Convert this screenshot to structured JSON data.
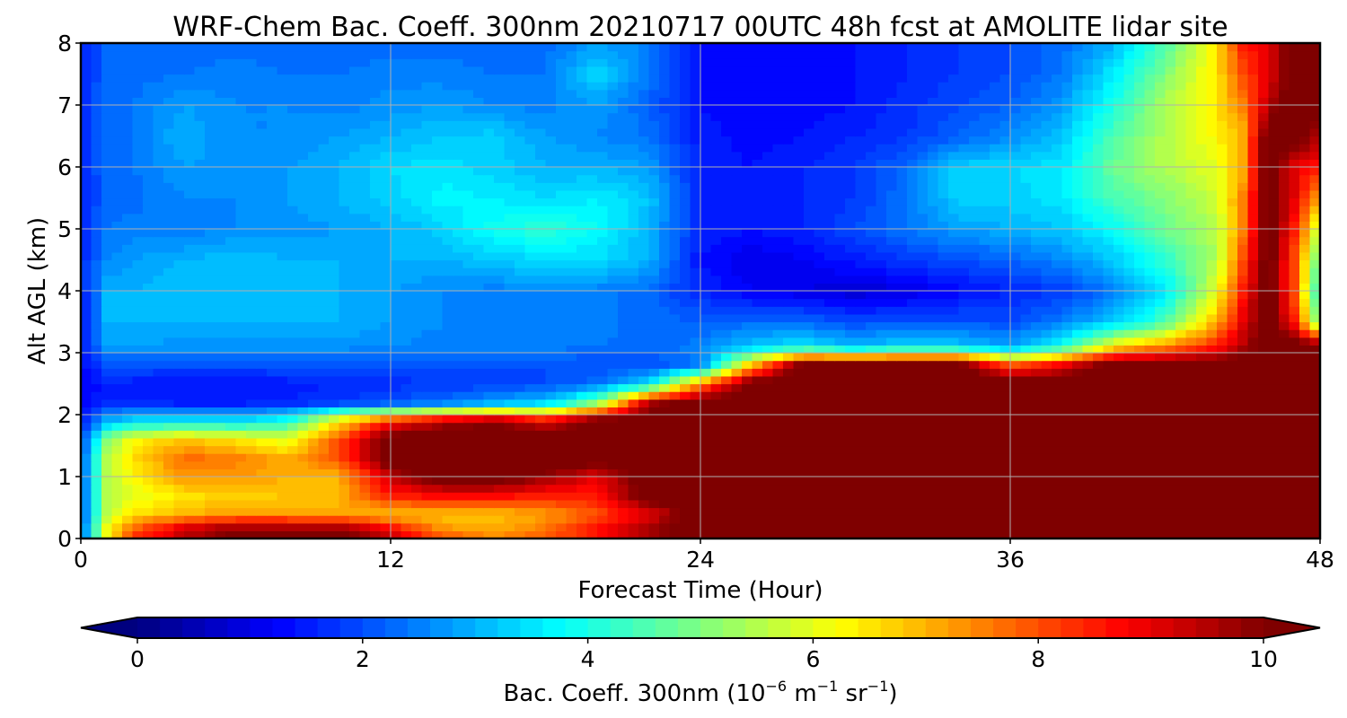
{
  "chart_data": {
    "type": "heatmap",
    "subtype": "filled-contour",
    "title": "WRF-Chem Bac. Coeff. 300nm  20210717 00UTC 48h fcst at AMOLITE lidar site",
    "xlabel": "Forecast Time (Hour)",
    "ylabel": "Alt AGL (km)",
    "xlim": [
      0,
      48
    ],
    "ylim": [
      0,
      8
    ],
    "xticks": [
      "0",
      "12",
      "24",
      "36",
      "48"
    ],
    "yticks": [
      "0",
      "1",
      "2",
      "3",
      "4",
      "5",
      "6",
      "7",
      "8"
    ],
    "grid": true,
    "colormap": "jet",
    "colorbar": {
      "label": "Bac. Coeff. 300nm  (10",
      "label_exp1": "−6",
      "label_mid": " m",
      "label_exp2": "−1",
      "label_mid2": " sr",
      "label_exp3": "−1",
      "label_end": ")",
      "range": [
        0,
        10
      ],
      "ticks": [
        "0",
        "2",
        "4",
        "6",
        "8",
        "10"
      ],
      "extend": "both",
      "under_color": "#00007f",
      "over_color": "#7f0000"
    },
    "x": [
      0,
      1,
      2,
      4,
      6,
      8,
      10,
      12,
      14,
      16,
      18,
      20,
      22,
      24,
      26,
      28,
      30,
      32,
      34,
      36,
      38,
      40,
      42,
      44,
      45,
      46,
      47,
      48
    ],
    "y": [
      0,
      0.2,
      0.4,
      0.7,
      1.0,
      1.3,
      1.6,
      1.9,
      2.2,
      2.5,
      2.8,
      3.1,
      3.5,
      4.0,
      4.5,
      5.0,
      5.5,
      6.0,
      6.5,
      7.0,
      7.5,
      8.0
    ],
    "z": [
      [
        2.0,
        6.0,
        8.5,
        9.5,
        10.5,
        10.5,
        10.5,
        9.5,
        8.0,
        7.5,
        8.0,
        8.5,
        9.5,
        10.5,
        10.5,
        10.5,
        10.5,
        10.5,
        10.5,
        10.5,
        10.5,
        10.5,
        10.5,
        10.5,
        10.5,
        10.5,
        10.5,
        10.5
      ],
      [
        2.0,
        6.0,
        7.5,
        9.0,
        9.5,
        9.5,
        9.5,
        8.5,
        7.2,
        7.0,
        7.5,
        8.5,
        9.5,
        10.5,
        10.5,
        10.5,
        10.5,
        10.5,
        10.5,
        10.5,
        10.5,
        10.5,
        10.5,
        10.5,
        10.5,
        10.5,
        10.5,
        10.5
      ],
      [
        2.0,
        5.5,
        6.5,
        7.0,
        7.2,
        7.2,
        7.0,
        6.8,
        6.8,
        6.8,
        7.2,
        8.0,
        9.0,
        10.5,
        10.5,
        10.5,
        10.5,
        10.5,
        10.5,
        10.5,
        10.5,
        10.5,
        10.5,
        10.5,
        10.5,
        10.5,
        10.5,
        10.5
      ],
      [
        2.0,
        5.5,
        6.0,
        6.5,
        6.7,
        6.8,
        7.0,
        8.5,
        8.8,
        8.8,
        8.5,
        8.5,
        10.5,
        10.5,
        10.5,
        10.5,
        10.5,
        10.5,
        10.5,
        10.5,
        10.5,
        10.5,
        10.5,
        10.5,
        10.5,
        10.5,
        10.5,
        10.5
      ],
      [
        2.0,
        5.5,
        6.3,
        7.3,
        7.3,
        7.0,
        7.0,
        9.3,
        10.5,
        10.5,
        9.8,
        9.0,
        10.5,
        10.5,
        10.5,
        10.5,
        10.5,
        10.5,
        10.5,
        10.5,
        10.5,
        10.5,
        10.5,
        10.5,
        10.5,
        10.5,
        10.5,
        10.5
      ],
      [
        2.0,
        5.5,
        6.5,
        7.7,
        7.5,
        7.0,
        8.0,
        10.5,
        10.5,
        10.5,
        10.5,
        10.5,
        10.5,
        10.5,
        10.5,
        10.5,
        10.5,
        10.5,
        10.5,
        10.5,
        10.5,
        10.5,
        10.5,
        10.5,
        10.5,
        10.5,
        10.5,
        10.5
      ],
      [
        1.8,
        5.0,
        6.3,
        6.8,
        6.5,
        6.0,
        8.0,
        10.5,
        10.5,
        10.5,
        10.5,
        10.5,
        10.5,
        10.5,
        10.5,
        10.5,
        10.5,
        10.5,
        10.5,
        10.5,
        10.5,
        10.5,
        10.5,
        10.5,
        10.5,
        10.5,
        10.5,
        10.5
      ],
      [
        1.5,
        3.0,
        3.5,
        3.5,
        3.5,
        4.0,
        6.5,
        8.5,
        9.5,
        10.0,
        9.0,
        10.5,
        10.5,
        10.5,
        10.5,
        10.5,
        10.5,
        10.5,
        10.5,
        10.5,
        10.5,
        10.5,
        10.5,
        10.5,
        10.5,
        10.5,
        10.5,
        10.5
      ],
      [
        1.2,
        1.6,
        1.6,
        1.5,
        1.5,
        1.6,
        1.8,
        2.0,
        2.3,
        2.8,
        3.2,
        5.0,
        9.5,
        10.5,
        10.5,
        10.5,
        10.5,
        10.5,
        10.5,
        10.5,
        10.5,
        10.5,
        10.5,
        10.5,
        10.5,
        10.5,
        10.5,
        10.5
      ],
      [
        1.2,
        1.5,
        1.5,
        1.4,
        1.4,
        1.5,
        1.6,
        1.7,
        1.8,
        1.9,
        2.0,
        2.3,
        3.5,
        7.5,
        10.5,
        10.5,
        10.5,
        10.5,
        10.5,
        10.5,
        10.5,
        10.5,
        10.5,
        10.5,
        10.5,
        10.5,
        10.5,
        10.5
      ],
      [
        1.3,
        2.0,
        2.0,
        2.0,
        2.0,
        2.0,
        2.0,
        2.0,
        2.0,
        2.0,
        2.0,
        2.0,
        2.0,
        2.5,
        7.0,
        10.5,
        10.5,
        10.5,
        10.5,
        8.0,
        9.0,
        10.5,
        10.5,
        10.5,
        10.5,
        10.5,
        10.5,
        10.5
      ],
      [
        1.4,
        2.8,
        2.8,
        2.7,
        2.7,
        2.7,
        2.7,
        2.6,
        2.5,
        2.5,
        2.5,
        2.4,
        2.3,
        2.5,
        3.2,
        3.6,
        3.0,
        3.5,
        3.3,
        2.8,
        4.0,
        6.5,
        7.5,
        8.5,
        9.5,
        10.5,
        10.5,
        10.5
      ],
      [
        1.4,
        3.0,
        3.0,
        3.0,
        3.0,
        3.0,
        3.0,
        2.8,
        2.6,
        2.5,
        2.6,
        2.5,
        2.3,
        2.2,
        2.3,
        2.3,
        2.0,
        2.1,
        2.1,
        2.0,
        2.5,
        3.2,
        4.5,
        7.0,
        9.0,
        10.5,
        8.5,
        4.5
      ],
      [
        1.5,
        3.0,
        3.0,
        3.2,
        3.2,
        3.0,
        3.0,
        2.8,
        2.6,
        2.5,
        2.6,
        2.5,
        2.3,
        1.6,
        1.2,
        1.0,
        0.8,
        1.0,
        1.3,
        1.6,
        1.8,
        2.4,
        3.5,
        6.0,
        8.5,
        10.5,
        8.0,
        3.8
      ],
      [
        1.6,
        2.6,
        2.8,
        3.0,
        3.2,
        3.0,
        3.0,
        3.0,
        3.0,
        3.2,
        3.4,
        3.4,
        3.0,
        1.4,
        1.0,
        1.2,
        1.5,
        1.8,
        2.0,
        2.2,
        2.6,
        3.2,
        4.2,
        5.5,
        8.0,
        10.5,
        8.0,
        4.5
      ],
      [
        1.6,
        2.4,
        2.5,
        2.5,
        2.6,
        2.7,
        2.8,
        3.0,
        3.3,
        3.9,
        4.2,
        3.8,
        3.0,
        1.6,
        1.4,
        1.6,
        2.0,
        2.4,
        2.8,
        3.0,
        3.2,
        3.8,
        4.8,
        5.5,
        7.5,
        10.5,
        8.5,
        5.5
      ],
      [
        1.6,
        2.2,
        2.3,
        2.6,
        2.6,
        2.8,
        3.0,
        3.3,
        3.7,
        3.6,
        3.4,
        3.6,
        3.2,
        1.6,
        1.4,
        1.6,
        1.8,
        2.4,
        3.3,
        3.3,
        3.5,
        4.5,
        5.0,
        5.8,
        7.5,
        10.5,
        9.0,
        7.0
      ],
      [
        1.6,
        2.3,
        2.4,
        2.8,
        2.7,
        2.8,
        3.0,
        3.4,
        3.5,
        3.3,
        3.0,
        3.0,
        2.8,
        1.5,
        1.4,
        1.6,
        1.8,
        2.3,
        3.3,
        3.4,
        3.5,
        4.8,
        5.5,
        6.0,
        7.0,
        10.5,
        9.0,
        8.5
      ],
      [
        1.6,
        2.3,
        2.4,
        3.0,
        2.6,
        2.6,
        2.8,
        3.0,
        3.2,
        3.3,
        2.8,
        2.6,
        2.4,
        1.5,
        1.3,
        1.4,
        1.6,
        1.8,
        2.2,
        2.6,
        3.2,
        4.5,
        5.5,
        6.3,
        7.0,
        10.5,
        10.5,
        9.5
      ],
      [
        1.5,
        2.4,
        2.4,
        2.8,
        2.6,
        2.6,
        2.5,
        2.7,
        2.8,
        2.6,
        2.5,
        2.8,
        2.2,
        1.4,
        1.2,
        1.3,
        1.4,
        1.7,
        2.0,
        2.2,
        2.8,
        4.0,
        5.5,
        6.5,
        7.5,
        9.5,
        10.5,
        10.5
      ],
      [
        1.5,
        2.3,
        2.3,
        2.4,
        2.5,
        2.4,
        2.4,
        2.5,
        2.5,
        2.4,
        2.4,
        3.4,
        2.4,
        1.4,
        1.2,
        1.3,
        1.4,
        1.6,
        1.8,
        2.0,
        2.4,
        3.6,
        5.0,
        6.5,
        8.0,
        9.0,
        10.5,
        10.5
      ],
      [
        1.5,
        2.2,
        2.3,
        2.3,
        2.3,
        2.3,
        2.3,
        2.3,
        2.3,
        2.3,
        2.3,
        2.8,
        2.5,
        1.4,
        1.3,
        1.3,
        1.4,
        1.6,
        1.8,
        2.0,
        2.3,
        3.0,
        4.5,
        6.5,
        8.5,
        9.0,
        10.5,
        10.5
      ]
    ]
  }
}
